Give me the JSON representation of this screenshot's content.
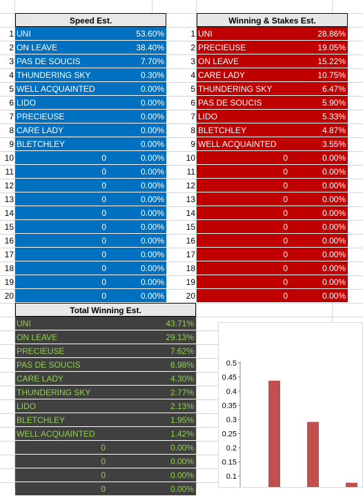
{
  "speed": {
    "title": "Speed Est.",
    "rows": [
      {
        "n": "1",
        "name": "UNI",
        "v": "53.60%"
      },
      {
        "n": "2",
        "name": "ON LEAVE",
        "v": "38.40%"
      },
      {
        "n": "3",
        "name": "PAS DE SOUCIS",
        "v": "7.70%"
      },
      {
        "n": "4",
        "name": "THUNDERING SKY",
        "v": "0.30%"
      },
      {
        "n": "5",
        "name": "WELL ACQUAINTED",
        "v": "0.00%"
      },
      {
        "n": "6",
        "name": "LIDO",
        "v": "0.00%"
      },
      {
        "n": "7",
        "name": "PRECIEUSE",
        "v": "0.00%"
      },
      {
        "n": "8",
        "name": "CARE LADY",
        "v": "0.00%"
      },
      {
        "n": "9",
        "name": "BLETCHLEY",
        "v": "0.00%"
      },
      {
        "n": "10",
        "zero": "0",
        "v": "0.00%"
      },
      {
        "n": "11",
        "zero": "0",
        "v": "0.00%"
      },
      {
        "n": "12",
        "zero": "0",
        "v": "0.00%"
      },
      {
        "n": "13",
        "zero": "0",
        "v": "0.00%"
      },
      {
        "n": "14",
        "zero": "0",
        "v": "0.00%"
      },
      {
        "n": "15",
        "zero": "0",
        "v": "0.00%"
      },
      {
        "n": "16",
        "zero": "0",
        "v": "0.00%"
      },
      {
        "n": "17",
        "zero": "0",
        "v": "0.00%"
      },
      {
        "n": "18",
        "zero": "0",
        "v": "0.00%"
      },
      {
        "n": "19",
        "zero": "0",
        "v": "0.00%"
      },
      {
        "n": "20",
        "zero": "0",
        "v": "0.00%"
      }
    ]
  },
  "stakes": {
    "title": "Winning & Stakes Est.",
    "rows": [
      {
        "n": "1",
        "name": "UNI",
        "v": "28.86%"
      },
      {
        "n": "2",
        "name": "PRECIEUSE",
        "v": "19.05%"
      },
      {
        "n": "3",
        "name": "ON LEAVE",
        "v": "15.22%"
      },
      {
        "n": "4",
        "name": "CARE LADY",
        "v": "10.75%"
      },
      {
        "n": "5",
        "name": "THUNDERING SKY",
        "v": "6.47%"
      },
      {
        "n": "6",
        "name": "PAS DE SOUCIS",
        "v": "5.90%"
      },
      {
        "n": "7",
        "name": "LIDO",
        "v": "5.33%"
      },
      {
        "n": "8",
        "name": "BLETCHLEY",
        "v": "4.87%"
      },
      {
        "n": "9",
        "name": "WELL ACQUAINTED",
        "v": "3.55%"
      },
      {
        "n": "10",
        "zero": "0",
        "v": "0.00%"
      },
      {
        "n": "11",
        "zero": "0",
        "v": "0.00%"
      },
      {
        "n": "12",
        "zero": "0",
        "v": "0.00%"
      },
      {
        "n": "13",
        "zero": "0",
        "v": "0.00%"
      },
      {
        "n": "14",
        "zero": "0",
        "v": "0.00%"
      },
      {
        "n": "15",
        "zero": "0",
        "v": "0.00%"
      },
      {
        "n": "16",
        "zero": "0",
        "v": "0.00%"
      },
      {
        "n": "17",
        "zero": "0",
        "v": "0.00%"
      },
      {
        "n": "18",
        "zero": "0",
        "v": "0.00%"
      },
      {
        "n": "19",
        "zero": "0",
        "v": "0.00%"
      },
      {
        "n": "20",
        "zero": "0",
        "v": "0.00%"
      }
    ]
  },
  "total": {
    "title": "Total Winning Est.",
    "rows": [
      {
        "name": "UNI",
        "v": "43.71%"
      },
      {
        "name": "ON LEAVE",
        "v": "29.13%"
      },
      {
        "name": "PRECIEUSE",
        "v": "7.62%"
      },
      {
        "name": "PAS DE SOUCIS",
        "v": "6.98%"
      },
      {
        "name": "CARE LADY",
        "v": "4.30%"
      },
      {
        "name": "THUNDERING SKY",
        "v": "2.77%"
      },
      {
        "name": "LIDO",
        "v": "2.13%"
      },
      {
        "name": "BLETCHLEY",
        "v": "1.95%"
      },
      {
        "name": "WELL ACQUAINTED",
        "v": "1.42%"
      },
      {
        "zero": "0",
        "v": "0.00%"
      },
      {
        "zero": "0",
        "v": "0.00%"
      },
      {
        "zero": "0",
        "v": "0.00%"
      },
      {
        "zero": "0",
        "v": "0.00%"
      }
    ]
  },
  "colors": {
    "speed": "#0070c0",
    "stakes": "#c00000",
    "total_bg": "#404040",
    "total_text": "#92d050",
    "bar": "#c0504d"
  },
  "chart_data": {
    "type": "bar",
    "title": "",
    "xlabel": "",
    "ylabel": "",
    "ylim": [
      0.05,
      0.5
    ],
    "yticks": [
      "0.5",
      "0.45",
      "0.4",
      "0.35",
      "0.3",
      "0.25",
      "0.2",
      "0.15",
      "0.1"
    ],
    "values": [
      0.4371,
      0.2913,
      0.0762
    ],
    "grid": false
  }
}
